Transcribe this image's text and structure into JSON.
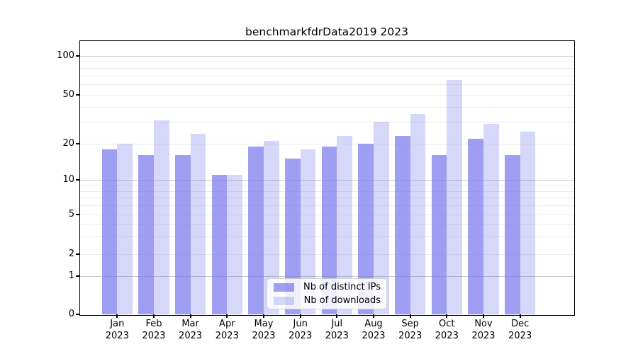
{
  "figure": {
    "title": "benchmarkfdrData2019 2023"
  },
  "chart_data": {
    "type": "bar",
    "title": "benchmarkfdrData2019 2023",
    "categories": [
      "Jan 2023",
      "Feb 2023",
      "Mar 2023",
      "Apr 2023",
      "May 2023",
      "Jun 2023",
      "Jul 2023",
      "Aug 2023",
      "Sep 2023",
      "Oct 2023",
      "Nov 2023",
      "Dec 2023"
    ],
    "series": [
      {
        "name": "Nb of distinct IPs",
        "values": [
          18,
          16,
          16,
          11,
          19,
          15,
          19,
          20,
          23,
          16,
          22,
          16
        ],
        "color": "rgba(121,121,237,0.72)"
      },
      {
        "name": "Nb of downloads",
        "values": [
          20,
          31,
          24,
          11,
          21,
          18,
          23,
          30,
          35,
          65,
          29,
          25
        ],
        "color": "rgba(121,121,237,0.30)"
      }
    ],
    "xlabel": "",
    "ylabel": "",
    "yscale": "symlog",
    "ytick_values": [
      100,
      50,
      20,
      10,
      5,
      2,
      1,
      0
    ],
    "ytick_labels": [
      "100",
      "50",
      "20",
      "10",
      "5",
      "2",
      "1",
      "0"
    ],
    "minor_grid_values": [
      2,
      3,
      4,
      5,
      6,
      7,
      8,
      9,
      20,
      30,
      40,
      50,
      60,
      70,
      80,
      90
    ],
    "major_grid_values": [
      1,
      10,
      100
    ],
    "ylim": [
      0,
      140
    ],
    "grid": "on",
    "legend_position": "lower center"
  },
  "colors": {
    "bar_distinct_ips": "rgba(121,121,237,0.72)",
    "bar_downloads": "rgba(121,121,237,0.30)",
    "major_grid": "#c8c8c8",
    "minor_grid": "#ececec",
    "axis": "#000000",
    "legend_border": "#d0d0d0"
  }
}
